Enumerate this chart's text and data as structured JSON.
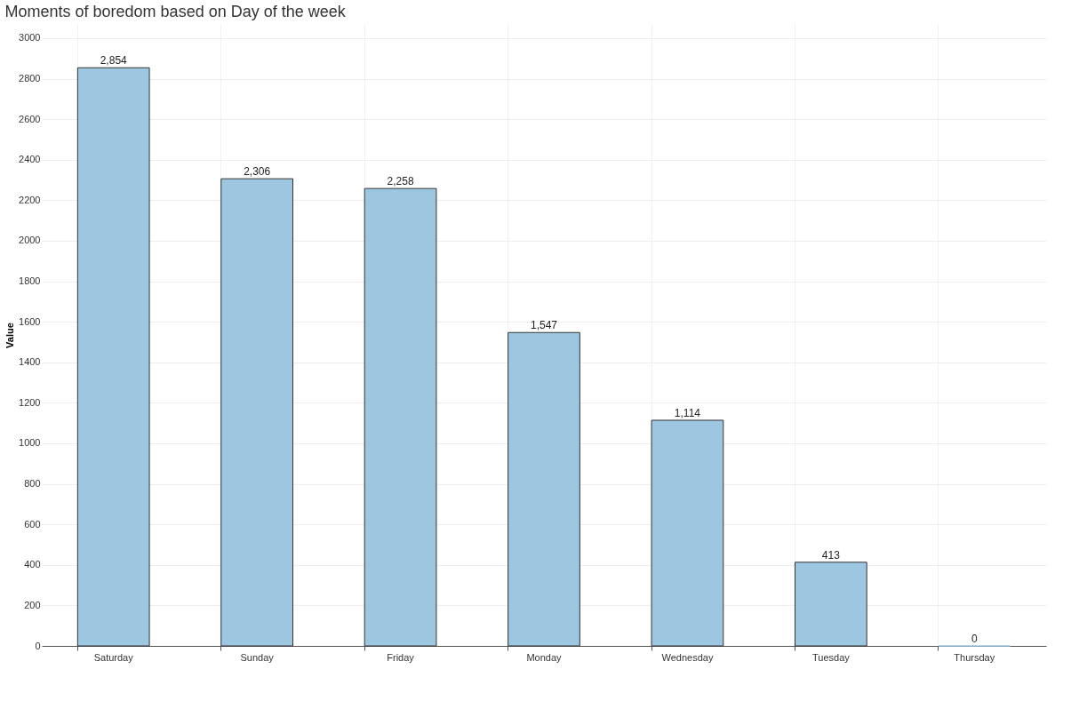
{
  "chart_data": {
    "type": "bar",
    "title": "Moments of boredom based on Day of the week",
    "ylabel": "Value",
    "categories": [
      "Saturday",
      "Sunday",
      "Friday",
      "Monday",
      "Wednesday",
      "Tuesday",
      "Thursday"
    ],
    "values": [
      2854,
      2306,
      2258,
      1547,
      1114,
      413,
      0
    ],
    "color": "#9dc6e1",
    "ylim": [
      0,
      3070
    ],
    "yticks": [
      0,
      200,
      400,
      600,
      800,
      1000,
      1200,
      1400,
      1600,
      1800,
      2000,
      2200,
      2400,
      2600,
      2800,
      3000
    ],
    "value_labels": [
      "2,854",
      "2,306",
      "2,258",
      "1,547",
      "1,114",
      "413",
      "0"
    ],
    "grid": true
  }
}
